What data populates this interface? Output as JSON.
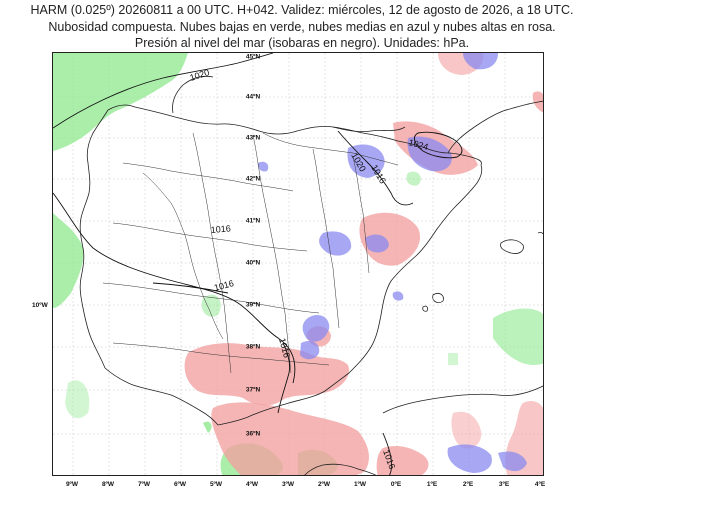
{
  "title": {
    "line1": "HARM (0.025º) 20260811 a 00 UTC. H+042. Validez: miércoles, 12 de agosto de 2026, a 18 UTC.",
    "line2": "Nubosidad compuesta. Nubes bajas en verde, nubes medias en azul y nubes altas en rosa.",
    "line3": "Presión al nivel del mar (isobaras en negro). Unidades: hPa."
  },
  "map": {
    "region": "Península Ibérica y Baleares",
    "lon_labels": [
      "9ºW",
      "8ºW",
      "7ºW",
      "6ºW",
      "5ºW",
      "4ºW",
      "3ºW",
      "2ºW",
      "1ºW",
      "0ºE",
      "1ºE",
      "2ºE",
      "3ºE",
      "4ºE"
    ],
    "lat_labels": [
      "45ºN",
      "44ºN",
      "43ºN",
      "42ºN",
      "41ºN",
      "40ºN",
      "39ºN",
      "38ºN",
      "37ºN",
      "36ºN"
    ],
    "edge_lon_label": "10ºW",
    "isobar_labels": [
      "1020",
      "1024",
      "1020",
      "1016",
      "1016",
      "1016",
      "1016",
      "1016"
    ],
    "legend": {
      "low_clouds_color": "#8ee88e",
      "mid_clouds_color": "#9a9af0",
      "high_clouds_color": "#f4a0a0",
      "isobar_color": "#000000"
    }
  }
}
